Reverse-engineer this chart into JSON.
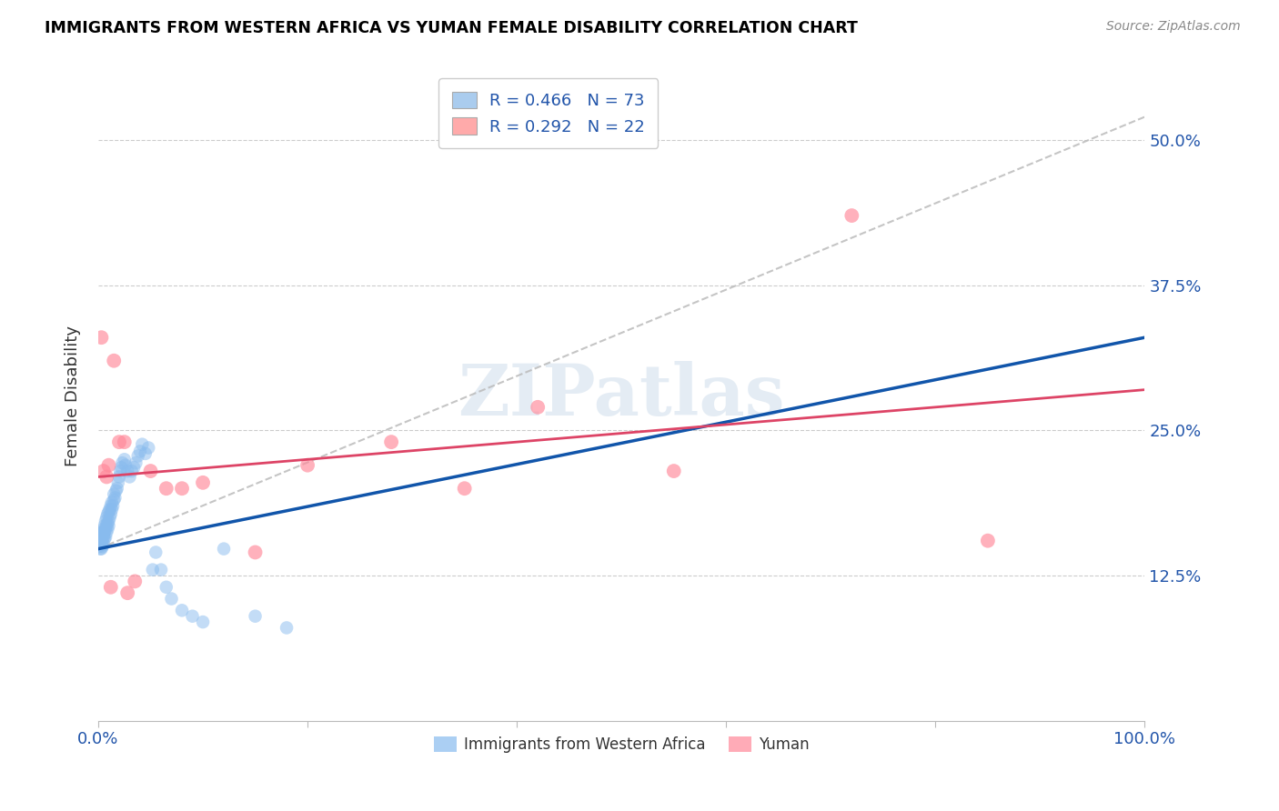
{
  "title": "IMMIGRANTS FROM WESTERN AFRICA VS YUMAN FEMALE DISABILITY CORRELATION CHART",
  "source": "Source: ZipAtlas.com",
  "ylabel": "Female Disability",
  "ytick_labels": [
    "12.5%",
    "25.0%",
    "37.5%",
    "50.0%"
  ],
  "ytick_values": [
    0.125,
    0.25,
    0.375,
    0.5
  ],
  "xlim": [
    0.0,
    1.0
  ],
  "ylim": [
    0.0,
    0.56
  ],
  "legend_label1": "R = 0.466   N = 73",
  "legend_label2": "R = 0.292   N = 22",
  "legend_color1": "#aaccee",
  "legend_color2": "#ffaaaa",
  "scatter_color_blue": "#88bbee",
  "scatter_color_pink": "#ff8899",
  "line_color_blue": "#1155aa",
  "line_color_pink": "#dd4466",
  "line_color_dashed": "#bbbbbb",
  "watermark": "ZIPatlas",
  "blue_x": [
    0.001,
    0.001,
    0.001,
    0.002,
    0.002,
    0.002,
    0.002,
    0.003,
    0.003,
    0.003,
    0.003,
    0.004,
    0.004,
    0.004,
    0.005,
    0.005,
    0.005,
    0.005,
    0.006,
    0.006,
    0.006,
    0.007,
    0.007,
    0.007,
    0.008,
    0.008,
    0.008,
    0.009,
    0.009,
    0.009,
    0.01,
    0.01,
    0.01,
    0.011,
    0.011,
    0.012,
    0.012,
    0.013,
    0.013,
    0.014,
    0.015,
    0.015,
    0.016,
    0.017,
    0.018,
    0.019,
    0.02,
    0.021,
    0.022,
    0.023,
    0.025,
    0.026,
    0.028,
    0.03,
    0.032,
    0.034,
    0.036,
    0.038,
    0.04,
    0.042,
    0.045,
    0.048,
    0.052,
    0.055,
    0.06,
    0.065,
    0.07,
    0.08,
    0.09,
    0.1,
    0.12,
    0.15,
    0.18
  ],
  "blue_y": [
    0.155,
    0.16,
    0.15,
    0.158,
    0.162,
    0.148,
    0.155,
    0.16,
    0.153,
    0.158,
    0.148,
    0.162,
    0.155,
    0.15,
    0.165,
    0.158,
    0.152,
    0.16,
    0.163,
    0.157,
    0.168,
    0.165,
    0.158,
    0.172,
    0.168,
    0.162,
    0.175,
    0.17,
    0.165,
    0.178,
    0.172,
    0.168,
    0.18,
    0.175,
    0.182,
    0.178,
    0.185,
    0.182,
    0.188,
    0.185,
    0.19,
    0.195,
    0.192,
    0.198,
    0.2,
    0.205,
    0.21,
    0.215,
    0.218,
    0.222,
    0.225,
    0.22,
    0.215,
    0.21,
    0.215,
    0.218,
    0.222,
    0.228,
    0.232,
    0.238,
    0.23,
    0.235,
    0.13,
    0.145,
    0.13,
    0.115,
    0.105,
    0.095,
    0.09,
    0.085,
    0.148,
    0.09,
    0.08
  ],
  "pink_x": [
    0.003,
    0.005,
    0.008,
    0.01,
    0.012,
    0.015,
    0.02,
    0.025,
    0.028,
    0.035,
    0.05,
    0.065,
    0.08,
    0.1,
    0.15,
    0.2,
    0.28,
    0.35,
    0.42,
    0.55,
    0.72,
    0.85
  ],
  "pink_y": [
    0.33,
    0.215,
    0.21,
    0.22,
    0.115,
    0.31,
    0.24,
    0.24,
    0.11,
    0.12,
    0.215,
    0.2,
    0.2,
    0.205,
    0.145,
    0.22,
    0.24,
    0.2,
    0.27,
    0.215,
    0.435,
    0.155
  ],
  "blue_line_x": [
    0.0,
    1.0
  ],
  "blue_line_y": [
    0.148,
    0.33
  ],
  "pink_line_x": [
    0.0,
    1.0
  ],
  "pink_line_y": [
    0.21,
    0.285
  ],
  "dash_line_x": [
    0.0,
    1.0
  ],
  "dash_line_y": [
    0.148,
    0.52
  ]
}
